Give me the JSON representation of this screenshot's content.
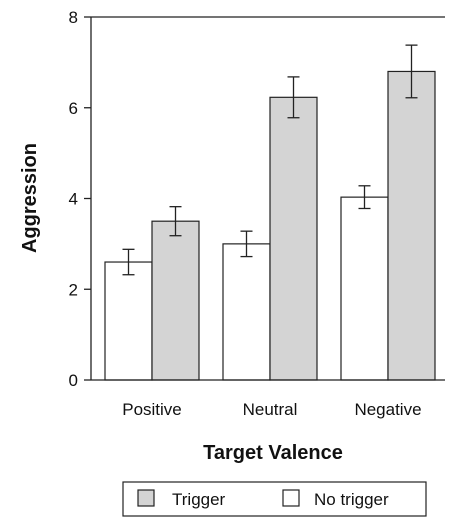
{
  "chart_data": {
    "type": "bar",
    "title": "",
    "xlabel": "Target Valence",
    "ylabel": "Aggression",
    "categories": [
      "Positive",
      "Neutral",
      "Negative"
    ],
    "ylim": [
      0,
      8
    ],
    "yticks": [
      0,
      2,
      4,
      6,
      8
    ],
    "grid": false,
    "legend_position": "bottom",
    "series": [
      {
        "name": "No trigger",
        "color": "#ffffff",
        "values": [
          2.6,
          3.0,
          4.03
        ],
        "error": [
          0.28,
          0.28,
          0.25
        ]
      },
      {
        "name": "Trigger",
        "color": "#d4d4d4",
        "values": [
          3.5,
          6.23,
          6.8
        ],
        "error": [
          0.32,
          0.45,
          0.58
        ]
      }
    ],
    "legend": {
      "entries": [
        {
          "label": "Trigger",
          "color": "#d4d4d4"
        },
        {
          "label": "No trigger",
          "color": "#ffffff"
        }
      ]
    }
  }
}
